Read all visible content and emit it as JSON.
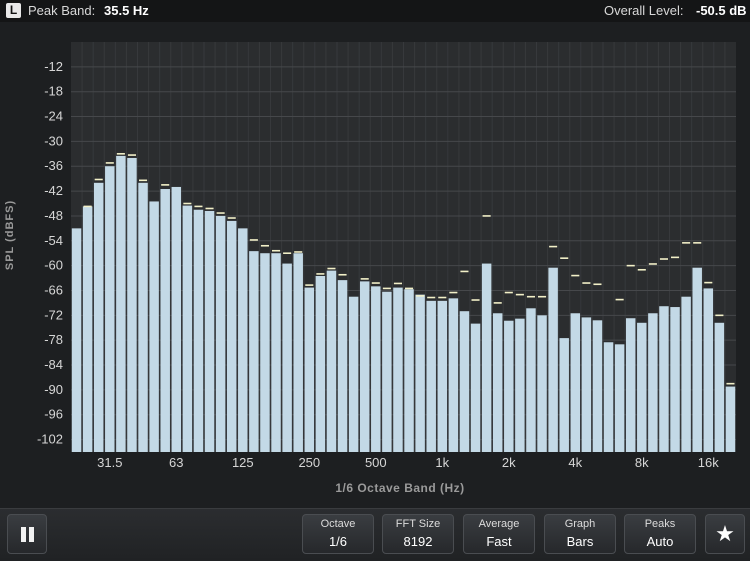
{
  "header": {
    "channel": "L",
    "peak_band_label": "Peak Band:",
    "peak_band_value": "35.5 Hz",
    "overall_level_label": "Overall Level:",
    "overall_level_value": "-50.5 dB"
  },
  "controls": [
    {
      "title": "Octave",
      "value": "1/6"
    },
    {
      "title": "FFT Size",
      "value": "8192"
    },
    {
      "title": "Average",
      "value": "Fast"
    },
    {
      "title": "Graph",
      "value": "Bars"
    },
    {
      "title": "Peaks",
      "value": "Auto"
    }
  ],
  "icons": {
    "pause": "pause-icon",
    "favorite": "star-icon"
  },
  "colors": {
    "bar": "#c3d9e6",
    "peak_marker": "#f2f0c8",
    "plot_bg": "#2b2d2f",
    "grid": "#46484b"
  },
  "chart_data": {
    "type": "bar",
    "ylabel": "SPL (dBFS)",
    "xlabel": "1/6 Octave Band (Hz)",
    "ylim": [
      -105,
      -6
    ],
    "yticks": [
      -12,
      -18,
      -24,
      -30,
      -36,
      -42,
      -48,
      -54,
      -60,
      -66,
      -72,
      -78,
      -84,
      -90,
      -96,
      -102
    ],
    "xticks": [
      "31.5",
      "63",
      "125",
      "250",
      "500",
      "1k",
      "2k",
      "4k",
      "8k",
      "16k"
    ],
    "grid": true,
    "series": [
      {
        "name": "level",
        "values": [
          -51,
          -45.7,
          -40,
          -36,
          -33.5,
          -34,
          -40,
          -44.5,
          -41.5,
          -41,
          -45.5,
          -46.5,
          -46.8,
          -48,
          -49.2,
          -51,
          -56.5,
          -57,
          -57,
          -59.5,
          -57,
          -65.3,
          -62.5,
          -61.2,
          -63.5,
          -67.5,
          -63.8,
          -65,
          -66.3,
          -65.3,
          -65.7,
          -67,
          -68.5,
          -68.5,
          -67.9,
          -71,
          -74,
          -59.5,
          -71.5,
          -73.3,
          -72.8,
          -70.3,
          -72,
          -60.5,
          -77.5,
          -71.5,
          -72.5,
          -73.2,
          -78.5,
          -79,
          -72.7,
          -73.8,
          -71.5,
          -69.8,
          -70,
          -67.5,
          -60.5,
          -65.5,
          -73.8,
          -89.2
        ]
      },
      {
        "name": "peak",
        "values": [
          null,
          -45.7,
          -39.2,
          -35.2,
          -33,
          -33.3,
          -39.4,
          null,
          -40.5,
          null,
          -45,
          -45.7,
          -46.2,
          -47.3,
          -48.5,
          null,
          -53.8,
          -55.2,
          -56.4,
          -57,
          -56.7,
          -64.7,
          -62,
          -60.7,
          -62.2,
          null,
          -63.2,
          -64.2,
          -65.5,
          -64.3,
          -65.5,
          -67.3,
          -67.7,
          -67.7,
          -66.5,
          -61.4,
          -68.3,
          -48,
          -69,
          -66.5,
          -67,
          -67.5,
          -67.5,
          -55.4,
          -58.2,
          -62.4,
          -64.2,
          -64.5,
          null,
          -68.2,
          -60,
          -61,
          -59.6,
          -58.4,
          -58,
          -54.5,
          -54.5,
          -64.1,
          -72,
          -88.5
        ]
      }
    ]
  }
}
